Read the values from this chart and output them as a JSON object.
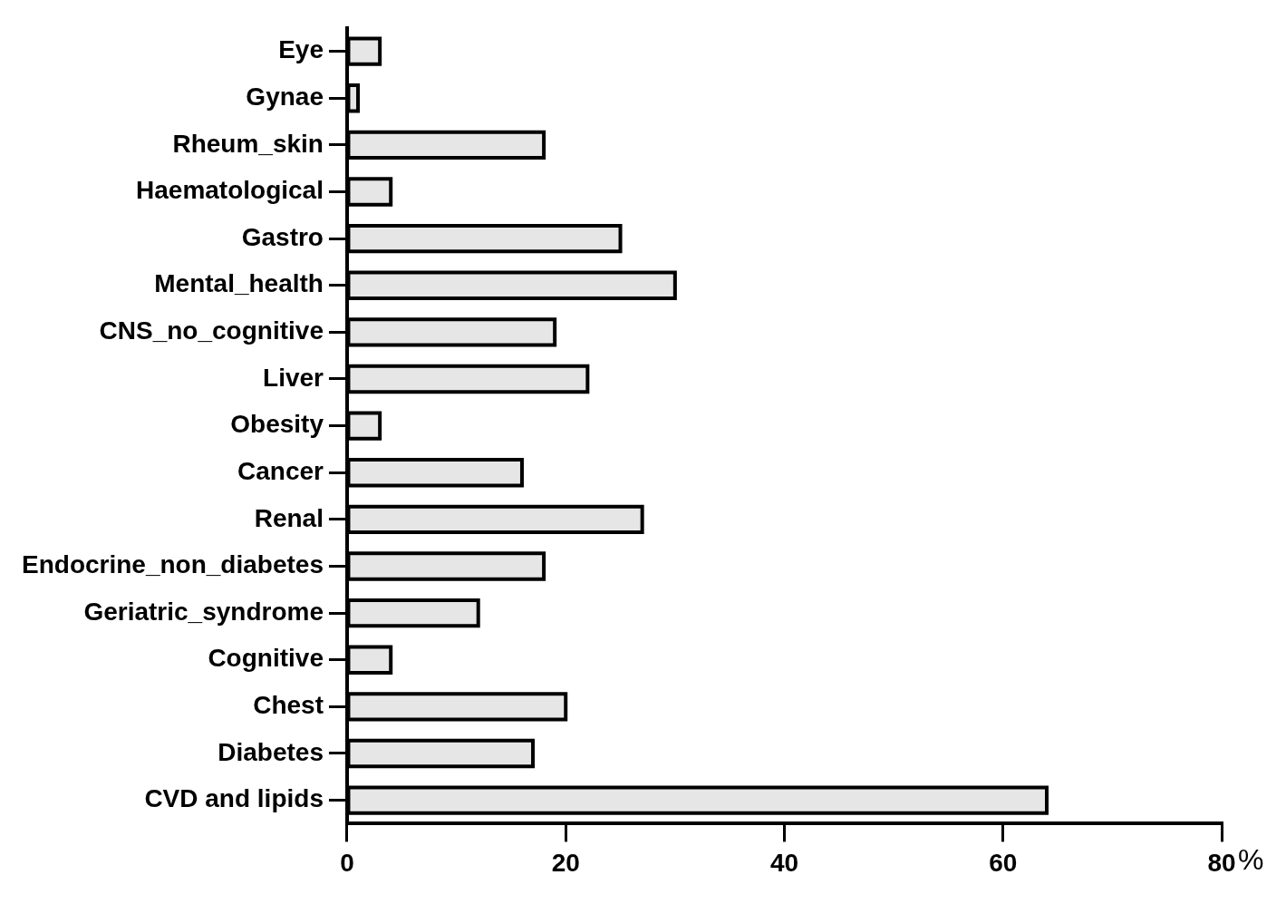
{
  "chart_data": {
    "type": "bar",
    "orientation": "horizontal",
    "xlabel": "%",
    "categories": [
      "Eye",
      "Gynae",
      "Rheum_skin",
      "Haematological",
      "Gastro",
      "Mental_health",
      "CNS_no_cognitive",
      "Liver",
      "Obesity",
      "Cancer",
      "Renal",
      "Endocrine_non_diabetes",
      "Geriatric_syndrome",
      "Cognitive",
      "Chest",
      "Diabetes",
      "CVD and lipids"
    ],
    "values": [
      3,
      1,
      18,
      4,
      25,
      30,
      19,
      22,
      3,
      16,
      27,
      18,
      12,
      4,
      20,
      17,
      64
    ],
    "color": "#e6e6e6",
    "xlim": [
      0,
      80
    ],
    "xticks": [
      0,
      20,
      40,
      60,
      80
    ],
    "grid": false,
    "legend": false
  }
}
